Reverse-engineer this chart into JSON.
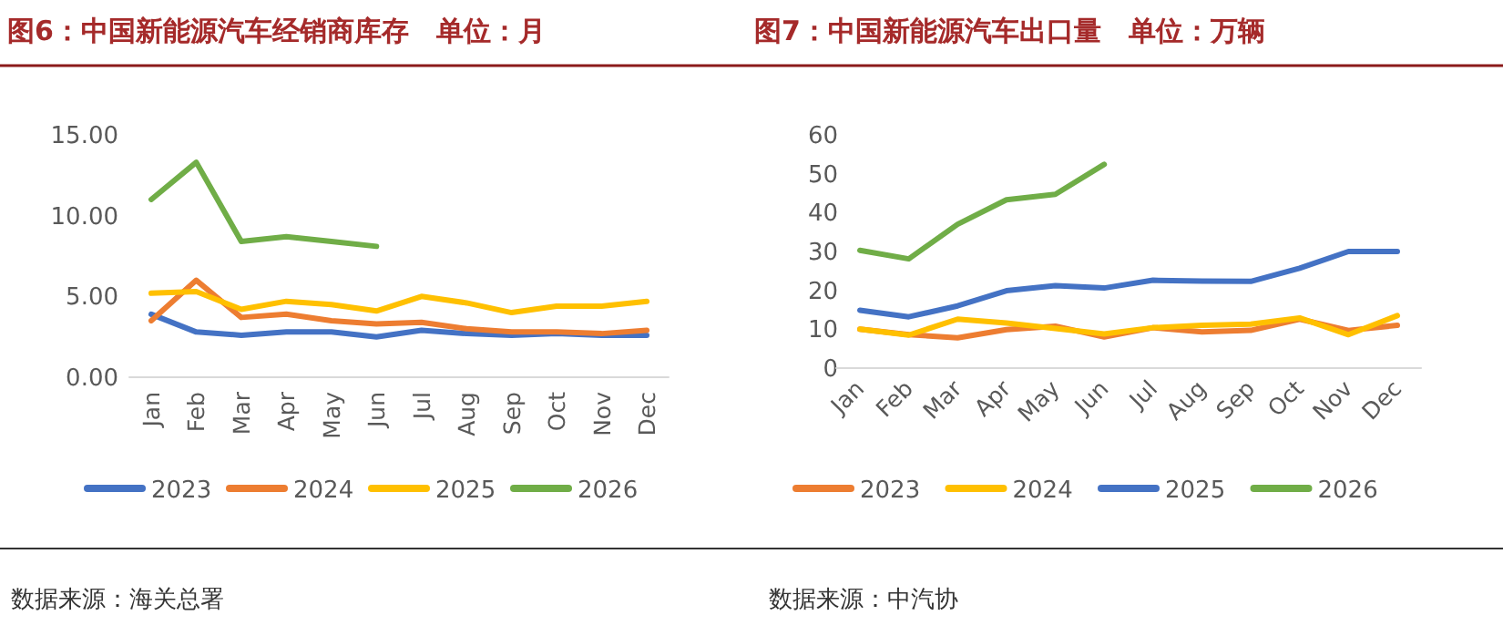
{
  "chart_data": [
    {
      "type": "line",
      "title": "图6：中国新能源汽车经销商库存　单位：月",
      "categories": [
        "Jan",
        "Feb",
        "Mar",
        "Apr",
        "May",
        "Jun",
        "Jul",
        "Aug",
        "Sep",
        "Oct",
        "Nov",
        "Dec"
      ],
      "ylim": [
        0,
        15
      ],
      "yticks": [
        {
          "value": 0,
          "label": "0.00"
        },
        {
          "value": 5,
          "label": "5.00"
        },
        {
          "value": 10,
          "label": "10.00"
        },
        {
          "value": 15,
          "label": "15.00"
        }
      ],
      "grid": false,
      "legend": "bottom",
      "annotations": [
        "数据来源：海关总署"
      ],
      "series": [
        {
          "name": "2023",
          "color": "#4472c4",
          "values": [
            3.9,
            2.8,
            2.6,
            2.8,
            2.8,
            2.5,
            2.9,
            2.7,
            2.6,
            2.7,
            2.6,
            2.6
          ]
        },
        {
          "name": "2024",
          "color": "#ed7d31",
          "values": [
            3.5,
            6.0,
            3.7,
            3.9,
            3.5,
            3.3,
            3.4,
            3.0,
            2.8,
            2.8,
            2.7,
            2.9
          ]
        },
        {
          "name": "2025",
          "color": "#ffc000",
          "values": [
            5.2,
            5.3,
            4.2,
            4.7,
            4.5,
            4.1,
            5.0,
            4.6,
            4.0,
            4.4,
            4.4,
            4.7
          ]
        },
        {
          "name": "2026",
          "color": "#70ad47",
          "values": [
            11.0,
            13.3,
            8.4,
            8.7,
            8.4,
            8.1,
            null,
            null,
            null,
            null,
            null,
            null
          ]
        }
      ]
    },
    {
      "type": "line",
      "title": "图7：中国新能源汽车出口量　单位：万辆",
      "categories": [
        "Jan",
        "Feb",
        "Mar",
        "Apr",
        "May",
        "Jun",
        "Jul",
        "Aug",
        "Sep",
        "Oct",
        "Nov",
        "Dec"
      ],
      "ylim": [
        0,
        60
      ],
      "yticks": [
        0,
        10,
        20,
        30,
        40,
        50,
        60
      ],
      "grid": false,
      "legend": "bottom",
      "annotations": [
        "数据来源：中汽协"
      ],
      "series": [
        {
          "name": "2023",
          "color": "#ed7d31",
          "values": [
            10.0,
            8.6,
            7.8,
            9.9,
            10.8,
            8.0,
            10.4,
            9.3,
            9.7,
            12.6,
            9.7,
            11.0
          ]
        },
        {
          "name": "2024",
          "color": "#ffc000",
          "values": [
            10.0,
            8.5,
            12.6,
            11.6,
            10.2,
            8.8,
            10.4,
            11.0,
            11.3,
            12.9,
            8.6,
            13.5
          ]
        },
        {
          "name": "2025",
          "color": "#4472c4",
          "values": [
            14.9,
            13.2,
            16.0,
            19.9,
            21.2,
            20.6,
            22.6,
            22.4,
            22.3,
            25.7,
            30.0,
            30.0
          ]
        },
        {
          "name": "2026",
          "color": "#70ad47",
          "values": [
            30.3,
            28.1,
            37.0,
            43.3,
            44.7,
            52.4,
            null,
            null,
            null,
            null,
            null,
            null
          ]
        }
      ]
    }
  ]
}
